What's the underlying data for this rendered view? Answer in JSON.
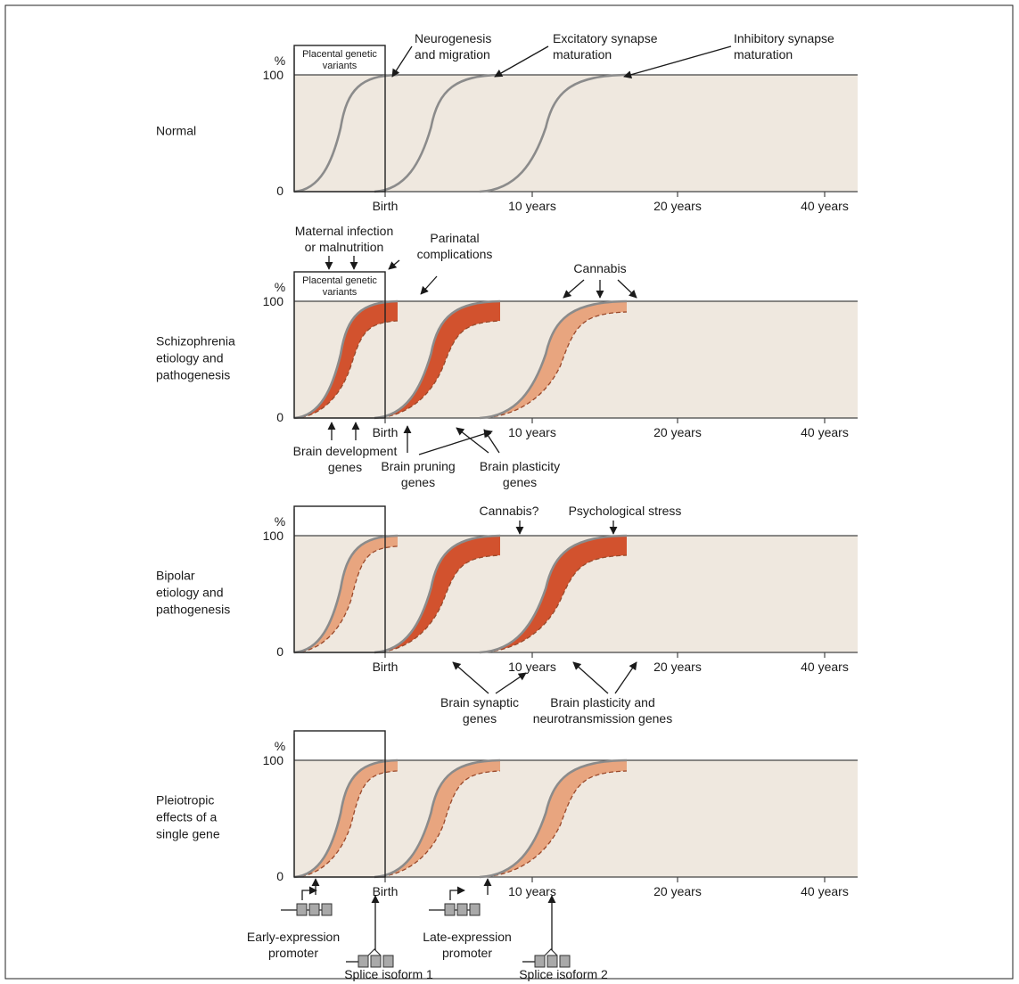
{
  "figure": {
    "x_ticks": [
      "Birth",
      "10 years",
      "20 years",
      "40 years"
    ],
    "y_ticks": [
      "0",
      "100"
    ],
    "y_unit": "%",
    "colors": {
      "panel_bg": "#efe8df",
      "curve": "#8b8b8b",
      "strong_band": "#d2522e",
      "mild_band": "#e8a57f",
      "dash": "#9a4a2c"
    }
  },
  "panels": [
    {
      "id": "normal",
      "side_label": [
        "Normal"
      ],
      "box_label": [
        "Placental genetic",
        "variants"
      ],
      "top_annotations": [
        [
          "Neurogenesis",
          "and migration"
        ],
        [
          "Excitatory synapse",
          "maturation"
        ],
        [
          "Inhibitory synapse",
          "maturation"
        ]
      ]
    },
    {
      "id": "schizophrenia",
      "side_label": [
        "Schizophrenia",
        "etiology and",
        "pathogenesis"
      ],
      "box_label": [
        "Placental genetic",
        "variants"
      ],
      "top_annotations": {
        "maternal": [
          "Maternal infection",
          "or malnutrition"
        ],
        "perinatal": [
          "Parinatal",
          "complications"
        ],
        "cannabis": [
          "Cannabis"
        ]
      },
      "bottom_annotations": {
        "dev": [
          "Brain development",
          "genes"
        ],
        "pruning": [
          "Brain pruning",
          "genes"
        ],
        "plasticity": [
          "Brain plasticity",
          "genes"
        ]
      }
    },
    {
      "id": "bipolar",
      "side_label": [
        "Bipolar",
        "etiology and",
        "pathogenesis"
      ],
      "top_annotations": {
        "cannabis": [
          "Cannabis?"
        ],
        "stress": [
          "Psychological stress"
        ]
      },
      "bottom_annotations": {
        "synaptic": [
          "Brain synaptic",
          "genes"
        ],
        "plasticity": [
          "Brain plasticity and",
          "neurotransmission genes"
        ]
      }
    },
    {
      "id": "pleiotropic",
      "side_label": [
        "Pleiotropic",
        "effects of a",
        "single gene"
      ],
      "bottom_annotations": {
        "early": [
          "Early-expression",
          "promoter"
        ],
        "splice1": [
          "Splice isoform 1"
        ],
        "late": [
          "Late-expression",
          "promoter"
        ],
        "splice2": [
          "Splice isoform 2"
        ]
      }
    }
  ]
}
